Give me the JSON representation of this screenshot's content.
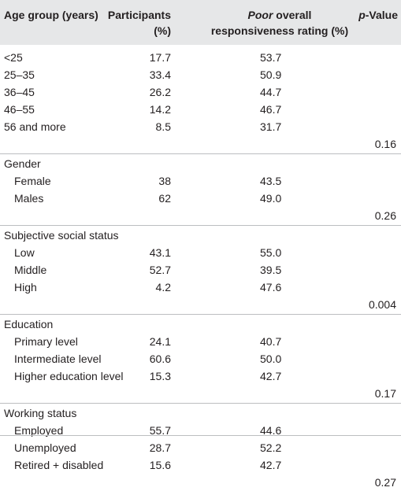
{
  "header": {
    "age_group": "Age group (years)",
    "participants_line1": "Participants",
    "participants_line2": "(%)",
    "poor_word": "Poor",
    "poor_rest_line1": " overall",
    "poor_line2": "responsiveness rating (%)",
    "p_word": "p",
    "p_rest": "-Value"
  },
  "rows": [
    {
      "label": "<25",
      "participants": "17.7",
      "poor": "53.7",
      "p": ""
    },
    {
      "label": "25–35",
      "participants": "33.4",
      "poor": "50.9",
      "p": ""
    },
    {
      "label": "36–45",
      "participants": "26.2",
      "poor": "44.7",
      "p": ""
    },
    {
      "label": "46–55",
      "participants": "14.2",
      "poor": "46.7",
      "p": ""
    },
    {
      "label": "56 and more",
      "participants": "8.5",
      "poor": "31.7",
      "p": ""
    },
    {
      "label": "",
      "participants": "",
      "poor": "",
      "p": "0.16"
    },
    {
      "label": "Gender",
      "participants": "",
      "poor": "",
      "p": ""
    },
    {
      "label": "Female",
      "participants": "38",
      "poor": "43.5",
      "p": ""
    },
    {
      "label": "Males",
      "participants": "62",
      "poor": "49.0",
      "p": ""
    },
    {
      "label": "",
      "participants": "",
      "poor": "",
      "p": "0.26"
    },
    {
      "label": "Subjective social status",
      "participants": "",
      "poor": "",
      "p": ""
    },
    {
      "label": "Low",
      "participants": "43.1",
      "poor": "55.0",
      "p": ""
    },
    {
      "label": "Middle",
      "participants": "52.7",
      "poor": "39.5",
      "p": ""
    },
    {
      "label": "High",
      "participants": "4.2",
      "poor": "47.6",
      "p": ""
    },
    {
      "label": "",
      "participants": "",
      "poor": "",
      "p": "0.004"
    },
    {
      "label": "Education",
      "participants": "",
      "poor": "",
      "p": ""
    },
    {
      "label": "Primary level",
      "participants": "24.1",
      "poor": "40.7",
      "p": ""
    },
    {
      "label": "Intermediate level",
      "participants": "60.6",
      "poor": "50.0",
      "p": ""
    },
    {
      "label": "Higher education level",
      "participants": "15.3",
      "poor": "42.7",
      "p": ""
    },
    {
      "label": "",
      "participants": "",
      "poor": "",
      "p": "0.17"
    },
    {
      "label": "Working status",
      "participants": "",
      "poor": "",
      "p": ""
    },
    {
      "label": "Employed",
      "participants": "55.7",
      "poor": "44.6",
      "p": ""
    },
    {
      "label": "Unemployed",
      "participants": "28.7",
      "poor": "52.2",
      "p": ""
    },
    {
      "label": "Retired + disabled",
      "participants": "15.6",
      "poor": "42.7",
      "p": ""
    },
    {
      "label": "",
      "participants": "",
      "poor": "",
      "p": "0.27"
    }
  ]
}
